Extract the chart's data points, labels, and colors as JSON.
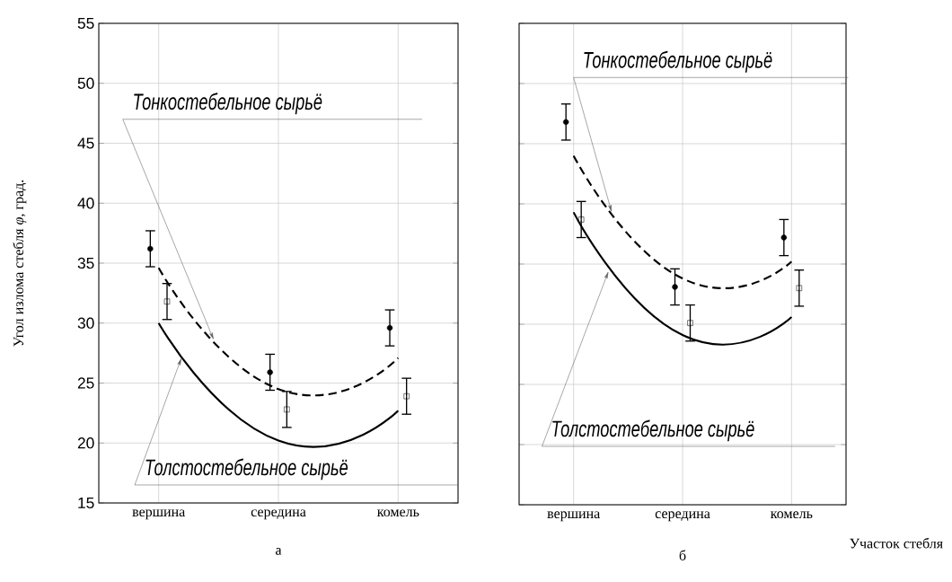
{
  "chart_data": [
    {
      "type": "scatter",
      "title": "а",
      "ylabel": "Угол излома стебля *φ*, град.",
      "categories": [
        "вершина",
        "середина",
        "комель"
      ],
      "ylim": [
        15,
        55
      ],
      "yticks": [
        15,
        20,
        25,
        30,
        35,
        40,
        45,
        50,
        55
      ],
      "grid": true,
      "annotations": [
        "Тонкостебельное сырьё",
        "Толстостебельное сырьё"
      ],
      "series": [
        {
          "marker": "circle",
          "color": "#000000",
          "values": [
            36.2,
            25.9,
            29.6
          ],
          "errors": [
            1.5,
            1.5,
            1.5
          ]
        },
        {
          "marker": "square",
          "color": "#000000",
          "values": [
            31.8,
            22.8,
            23.9
          ],
          "errors": [
            1.5,
            1.5,
            1.5
          ]
        },
        {
          "type": "line",
          "line_style": "dashed",
          "color": "#000000",
          "values": [
            34.6,
            24.5,
            27.1
          ]
        },
        {
          "type": "line",
          "line_style": "solid",
          "color": "#000000",
          "values": [
            30.0,
            20.2,
            22.7
          ]
        }
      ]
    },
    {
      "type": "scatter",
      "title": "б",
      "xlabel": "Участок стебля",
      "categories": [
        "вершина",
        "середина",
        "комель"
      ],
      "ylim": [
        15,
        55
      ],
      "yticks": [
        15,
        20,
        25,
        30,
        35,
        40,
        45,
        50,
        55
      ],
      "grid": true,
      "tick_labels": "x",
      "annotations": [
        "Тонкостебельное сырьё",
        "Толстостебельное сырьё"
      ],
      "series": [
        {
          "marker": "circle",
          "color": "#000000",
          "values": [
            46.8,
            33.1,
            37.2
          ],
          "errors": [
            1.5,
            1.5,
            1.5
          ]
        },
        {
          "marker": "square",
          "color": "#000000",
          "values": [
            38.7,
            30.1,
            33.0
          ],
          "errors": [
            1.5,
            1.5,
            1.5
          ]
        },
        {
          "type": "line",
          "line_style": "dashed",
          "color": "#000000",
          "values": [
            44.0,
            33.8,
            35.2
          ]
        },
        {
          "type": "line",
          "line_style": "solid",
          "color": "#000000",
          "values": [
            39.3,
            29.1,
            30.6
          ]
        }
      ]
    }
  ]
}
